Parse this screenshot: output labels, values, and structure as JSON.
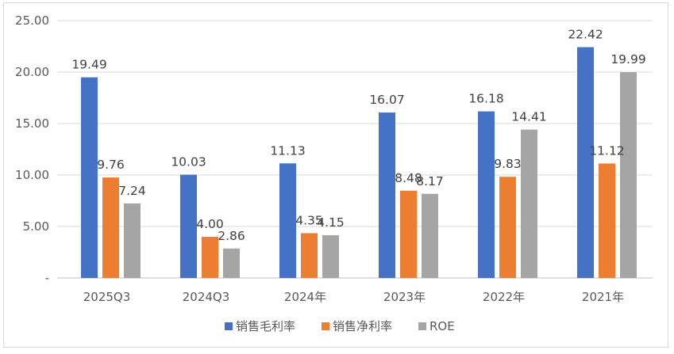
{
  "chart_data": {
    "type": "bar",
    "title": "",
    "xlabel": "",
    "ylabel": "",
    "categories": [
      "2025Q3",
      "2024Q3",
      "2024年",
      "2023年",
      "2022年",
      "2021年"
    ],
    "series": [
      {
        "name": "销售毛利率",
        "color": "#4472C4",
        "values": [
          19.49,
          10.03,
          11.13,
          16.07,
          16.18,
          22.42
        ],
        "labels": [
          "19.49",
          "10.03",
          "11.13",
          "16.07",
          "16.18",
          "22.42"
        ]
      },
      {
        "name": "销售净利率",
        "color": "#ED7D31",
        "values": [
          9.76,
          4.0,
          4.35,
          8.48,
          9.83,
          11.12
        ],
        "labels": [
          "9.76",
          "4.00",
          "4.35",
          "8.48",
          "9.83",
          "11.12"
        ]
      },
      {
        "name": "ROE",
        "color": "#A5A5A5",
        "values": [
          7.24,
          2.86,
          4.15,
          8.17,
          14.41,
          19.99
        ],
        "labels": [
          "7.24",
          "2.86",
          "4.15",
          "8.17",
          "14.41",
          "19.99"
        ]
      }
    ],
    "ylim": [
      0,
      25
    ],
    "yticks": [
      0,
      5,
      10,
      15,
      20,
      25
    ],
    "ytick_labels": [
      "-",
      "5.00",
      "10.00",
      "15.00",
      "20.00",
      "25.00"
    ],
    "grid": true,
    "legend_position": "bottom"
  }
}
